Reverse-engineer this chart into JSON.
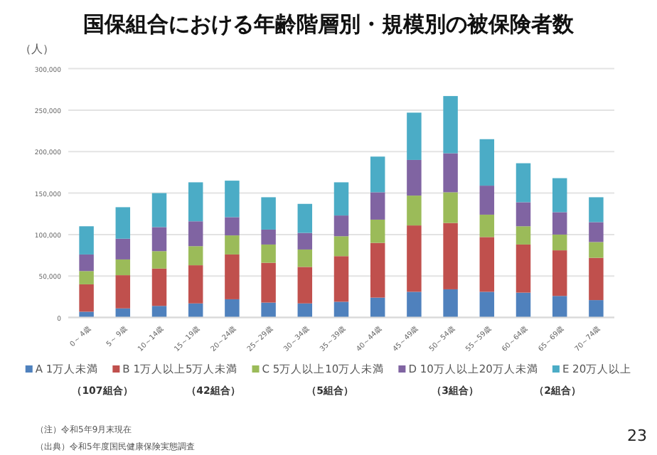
{
  "chart_data": {
    "type": "bar",
    "stacked": true,
    "title": "国保組合における年齢階層別・規模別の被保険者数",
    "ylabel": "（人）",
    "categories": [
      "0～ 4歳",
      "5～ 9歳",
      "10～14歳",
      "15～19歳",
      "20～24歳",
      "25～29歳",
      "30～34歳",
      "35～39歳",
      "40～44歳",
      "45～49歳",
      "50～54歳",
      "55～59歳",
      "60～64歳",
      "65～69歳",
      "70～74歳"
    ],
    "series": [
      {
        "name": "A 1万人未満",
        "color": "#4f81bd",
        "values": [
          7000,
          11000,
          14000,
          17000,
          22000,
          18000,
          17000,
          19000,
          24000,
          31000,
          34000,
          31000,
          30000,
          26000,
          21000
        ]
      },
      {
        "name": "B 1万人以上5万人未満",
        "color": "#c0504d",
        "values": [
          33000,
          40000,
          45000,
          46000,
          54000,
          48000,
          44000,
          55000,
          66000,
          80000,
          80000,
          66000,
          58000,
          55000,
          51000
        ]
      },
      {
        "name": "C 5万人以上10万人未満",
        "color": "#9bbb59",
        "values": [
          16000,
          19000,
          21000,
          23000,
          23000,
          22000,
          21000,
          24000,
          28000,
          36000,
          37000,
          27000,
          22000,
          19000,
          19000
        ]
      },
      {
        "name": "D 10万人以上20万人未満",
        "color": "#8064a2",
        "values": [
          20000,
          25000,
          29000,
          30000,
          22000,
          18000,
          20000,
          25000,
          33000,
          43000,
          47000,
          35000,
          29000,
          27000,
          24000
        ]
      },
      {
        "name": "E 20万人以上",
        "color": "#4bacc6",
        "values": [
          34000,
          38000,
          41000,
          47000,
          44000,
          39000,
          35000,
          40000,
          43000,
          57000,
          69000,
          56000,
          47000,
          41000,
          30000
        ]
      }
    ],
    "ylim": [
      0,
      300000
    ],
    "yticks": [
      {
        "value": 0,
        "label": "0"
      },
      {
        "value": 50000,
        "label": "50,000"
      },
      {
        "value": 100000,
        "label": "100,000"
      },
      {
        "value": 150000,
        "label": "150,000"
      },
      {
        "value": 200000,
        "label": "200,000"
      },
      {
        "value": 250000,
        "label": "250,000"
      },
      {
        "value": 300000,
        "label": "300,000"
      }
    ],
    "grid": "y",
    "legend": "bottom",
    "annotations": [
      "（107組合）",
      "（42組合）",
      "（5組合）",
      "（3組合）",
      "（2組合）",
      "（注）令和5年9月末現在",
      "（出典）令和5年度国民健康保険実態調査",
      "23"
    ]
  }
}
